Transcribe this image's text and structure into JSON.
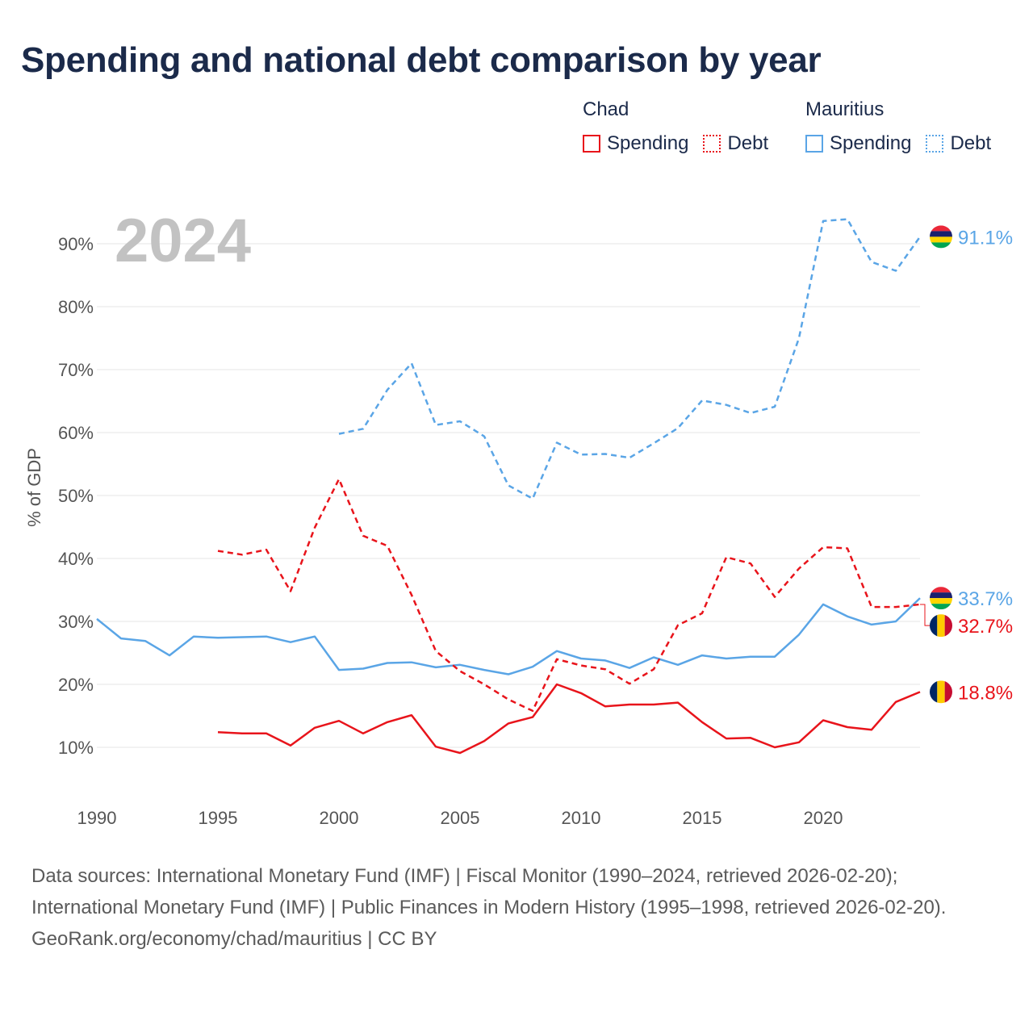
{
  "title": "Spending and national debt comparison by year",
  "legend": {
    "groups": [
      {
        "name": "Chad",
        "items": [
          {
            "label": "Spending",
            "style": "solid"
          },
          {
            "label": "Debt",
            "style": "dashed"
          }
        ],
        "color": "#e8141b"
      },
      {
        "name": "Mauritius",
        "items": [
          {
            "label": "Spending",
            "style": "solid"
          },
          {
            "label": "Debt",
            "style": "dashed"
          }
        ],
        "color": "#5aa5e6"
      }
    ]
  },
  "footer": {
    "sources": "Data sources: International Monetary Fund (IMF) | Fiscal Monitor (1990–2024, retrieved 2026-02-20); International Monetary Fund (IMF) | Public Finances in Modern History (1995–1998, retrieved 2026-02-20).",
    "credit": "GeoRank.org/economy/chad/mauritius | CC BY"
  },
  "chart_data": {
    "type": "line",
    "title": "Spending and national debt comparison by year",
    "year_overlay": "2024",
    "xlabel": "",
    "ylabel": "% of GDP",
    "xlim": [
      1990,
      2024
    ],
    "ylim": [
      0,
      95
    ],
    "xticks": [
      1990,
      1995,
      2000,
      2005,
      2010,
      2015,
      2020
    ],
    "yticks": [
      10,
      20,
      30,
      40,
      50,
      60,
      70,
      80,
      90
    ],
    "ytick_labels": [
      "10%",
      "20%",
      "30%",
      "40%",
      "50%",
      "60%",
      "70%",
      "80%",
      "90%"
    ],
    "grid": true,
    "series": [
      {
        "name": "Mauritius Debt",
        "country": "Mauritius",
        "metric": "Debt",
        "color": "#5aa5e6",
        "dashed": true,
        "end_label": "91.1%",
        "flag": "mauritius",
        "points": [
          [
            2000,
            59.8
          ],
          [
            2001,
            60.6
          ],
          [
            2002,
            66.8
          ],
          [
            2003,
            71.0
          ],
          [
            2004,
            61.2
          ],
          [
            2005,
            61.8
          ],
          [
            2006,
            59.4
          ],
          [
            2007,
            51.6
          ],
          [
            2008,
            49.5
          ],
          [
            2009,
            58.4
          ],
          [
            2010,
            56.5
          ],
          [
            2011,
            56.6
          ],
          [
            2012,
            56.0
          ],
          [
            2013,
            58.3
          ],
          [
            2014,
            60.7
          ],
          [
            2015,
            65.1
          ],
          [
            2016,
            64.4
          ],
          [
            2017,
            63.1
          ],
          [
            2018,
            64.1
          ],
          [
            2019,
            75.0
          ],
          [
            2020,
            93.6
          ],
          [
            2021,
            93.9
          ],
          [
            2022,
            87.1
          ],
          [
            2023,
            85.7
          ],
          [
            2024,
            91.1
          ]
        ]
      },
      {
        "name": "Mauritius Spending",
        "country": "Mauritius",
        "metric": "Spending",
        "color": "#5aa5e6",
        "dashed": false,
        "end_label": "33.7%",
        "flag": "mauritius",
        "points": [
          [
            1990,
            30.4
          ],
          [
            1991,
            27.3
          ],
          [
            1992,
            26.9
          ],
          [
            1993,
            24.6
          ],
          [
            1994,
            27.6
          ],
          [
            1995,
            27.4
          ],
          [
            1996,
            27.5
          ],
          [
            1997,
            27.6
          ],
          [
            1998,
            26.7
          ],
          [
            1999,
            27.6
          ],
          [
            2000,
            22.3
          ],
          [
            2001,
            22.5
          ],
          [
            2002,
            23.4
          ],
          [
            2003,
            23.5
          ],
          [
            2004,
            22.7
          ],
          [
            2005,
            23.1
          ],
          [
            2006,
            22.3
          ],
          [
            2007,
            21.6
          ],
          [
            2008,
            22.8
          ],
          [
            2009,
            25.3
          ],
          [
            2010,
            24.1
          ],
          [
            2011,
            23.8
          ],
          [
            2012,
            22.6
          ],
          [
            2013,
            24.3
          ],
          [
            2014,
            23.1
          ],
          [
            2015,
            24.6
          ],
          [
            2016,
            24.1
          ],
          [
            2017,
            24.4
          ],
          [
            2018,
            24.4
          ],
          [
            2019,
            27.9
          ],
          [
            2020,
            32.7
          ],
          [
            2021,
            30.8
          ],
          [
            2022,
            29.5
          ],
          [
            2023,
            30.0
          ],
          [
            2024,
            33.7
          ]
        ]
      },
      {
        "name": "Chad Debt",
        "country": "Chad",
        "metric": "Debt",
        "color": "#e8141b",
        "dashed": true,
        "end_label": "32.7%",
        "flag": "chad",
        "points": [
          [
            1995,
            41.2
          ],
          [
            1996,
            40.6
          ],
          [
            1997,
            41.4
          ],
          [
            1998,
            34.8
          ],
          [
            1999,
            44.9
          ],
          [
            2000,
            52.6
          ],
          [
            2001,
            43.6
          ],
          [
            2002,
            42.0
          ],
          [
            2003,
            34.2
          ],
          [
            2004,
            25.3
          ],
          [
            2005,
            22.1
          ],
          [
            2006,
            20.0
          ],
          [
            2007,
            17.6
          ],
          [
            2008,
            15.8
          ],
          [
            2009,
            24.0
          ],
          [
            2010,
            23.0
          ],
          [
            2011,
            22.4
          ],
          [
            2012,
            20.1
          ],
          [
            2013,
            22.4
          ],
          [
            2014,
            29.4
          ],
          [
            2015,
            31.3
          ],
          [
            2016,
            40.2
          ],
          [
            2017,
            39.2
          ],
          [
            2018,
            33.9
          ],
          [
            2019,
            38.4
          ],
          [
            2020,
            41.8
          ],
          [
            2021,
            41.6
          ],
          [
            2022,
            32.3
          ],
          [
            2023,
            32.3
          ],
          [
            2024,
            32.7
          ]
        ]
      },
      {
        "name": "Chad Spending",
        "country": "Chad",
        "metric": "Spending",
        "color": "#e8141b",
        "dashed": false,
        "end_label": "18.8%",
        "flag": "chad",
        "points": [
          [
            1995,
            12.4
          ],
          [
            1996,
            12.2
          ],
          [
            1997,
            12.2
          ],
          [
            1998,
            10.3
          ],
          [
            1999,
            13.1
          ],
          [
            2000,
            14.2
          ],
          [
            2001,
            12.2
          ],
          [
            2002,
            14.0
          ],
          [
            2003,
            15.1
          ],
          [
            2004,
            10.1
          ],
          [
            2005,
            9.1
          ],
          [
            2006,
            11.0
          ],
          [
            2007,
            13.8
          ],
          [
            2008,
            14.8
          ],
          [
            2009,
            20.0
          ],
          [
            2010,
            18.6
          ],
          [
            2011,
            16.5
          ],
          [
            2012,
            16.8
          ],
          [
            2013,
            16.8
          ],
          [
            2014,
            17.1
          ],
          [
            2015,
            14.0
          ],
          [
            2016,
            11.4
          ],
          [
            2017,
            11.5
          ],
          [
            2018,
            10.0
          ],
          [
            2019,
            10.8
          ],
          [
            2020,
            14.3
          ],
          [
            2021,
            13.2
          ],
          [
            2022,
            12.8
          ],
          [
            2023,
            17.2
          ],
          [
            2024,
            18.8
          ]
        ]
      }
    ]
  }
}
